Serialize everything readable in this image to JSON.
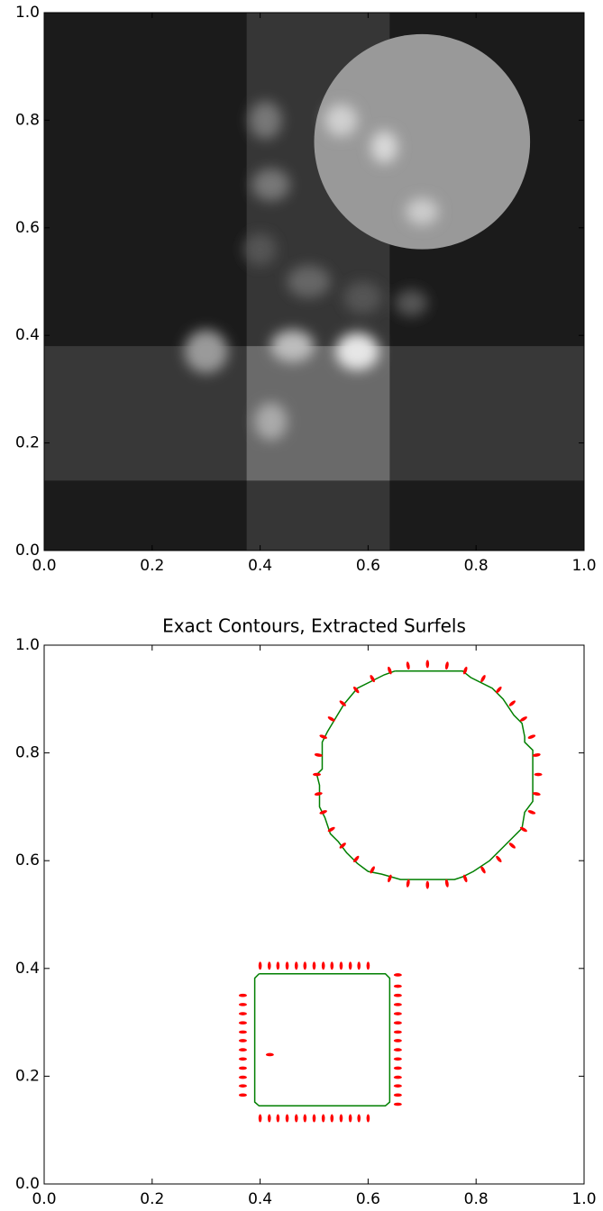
{
  "chart_data": [
    {
      "type": "image",
      "xlim": [
        0,
        1
      ],
      "ylim": [
        0,
        1
      ],
      "xticks": [
        {
          "value": 0,
          "label": "0.0"
        },
        0.2,
        0.4,
        0.6,
        0.8,
        {
          "value": 1,
          "label": "1.0"
        }
      ],
      "yticks": [
        {
          "value": 0,
          "label": "0.0"
        },
        0.2,
        0.4,
        0.6,
        0.8,
        {
          "value": 1,
          "label": "1.0"
        }
      ]
    },
    {
      "type": "scatter",
      "title": "Exact Contours, Extracted Surfels",
      "xlim": [
        0,
        1
      ],
      "ylim": [
        0,
        1
      ],
      "xticks": [
        {
          "value": 0,
          "label": "0.0"
        },
        0.2,
        0.4,
        0.6,
        0.8,
        {
          "value": 1,
          "label": "1.0"
        }
      ],
      "yticks": [
        {
          "value": 0,
          "label": "0.0"
        },
        0.2,
        0.4,
        0.6,
        0.8,
        {
          "value": 1,
          "label": "1.0"
        }
      ],
      "contour_color": "#007f00",
      "surfel_color": "#ff0000",
      "contours": [
        {
          "x": [
            0.398,
            0.632,
            0.64,
            0.64,
            0.632,
            0.398,
            0.39,
            0.39,
            0.398
          ],
          "y": [
            0.39,
            0.39,
            0.382,
            0.152,
            0.145,
            0.145,
            0.152,
            0.382,
            0.39
          ]
        },
        {
          "x": [
            0.65,
            0.775,
            0.79,
            0.83,
            0.85,
            0.87,
            0.885,
            0.89,
            0.89,
            0.905,
            0.905,
            0.89,
            0.885,
            0.865,
            0.845,
            0.825,
            0.795,
            0.775,
            0.76,
            0.66,
            0.625,
            0.6,
            0.58,
            0.56,
            0.545,
            0.53,
            0.52,
            0.51,
            0.51,
            0.505,
            0.515,
            0.515,
            0.525,
            0.54,
            0.555,
            0.58,
            0.61,
            0.63,
            0.65
          ],
          "y": [
            0.952,
            0.952,
            0.94,
            0.92,
            0.9,
            0.87,
            0.855,
            0.83,
            0.82,
            0.805,
            0.71,
            0.69,
            0.66,
            0.64,
            0.62,
            0.6,
            0.58,
            0.57,
            0.565,
            0.565,
            0.575,
            0.58,
            0.595,
            0.615,
            0.635,
            0.65,
            0.68,
            0.7,
            0.74,
            0.76,
            0.77,
            0.82,
            0.84,
            0.865,
            0.89,
            0.92,
            0.935,
            0.945,
            0.952
          ]
        }
      ],
      "surfels": {
        "x": [
          0.915,
          0.912,
          0.903,
          0.888,
          0.867,
          0.842,
          0.813,
          0.78,
          0.746,
          0.71,
          0.674,
          0.64,
          0.608,
          0.578,
          0.553,
          0.532,
          0.517,
          0.508,
          0.505,
          0.508,
          0.517,
          0.532,
          0.553,
          0.578,
          0.608,
          0.64,
          0.674,
          0.71,
          0.746,
          0.78,
          0.813,
          0.842,
          0.867,
          0.888,
          0.903,
          0.912,
          0.4,
          0.417,
          0.433,
          0.45,
          0.467,
          0.483,
          0.5,
          0.517,
          0.533,
          0.55,
          0.567,
          0.583,
          0.6,
          0.4,
          0.417,
          0.433,
          0.45,
          0.467,
          0.483,
          0.5,
          0.517,
          0.533,
          0.55,
          0.567,
          0.583,
          0.6,
          0.368,
          0.368,
          0.368,
          0.368,
          0.368,
          0.368,
          0.368,
          0.368,
          0.368,
          0.368,
          0.368,
          0.368,
          0.655,
          0.655,
          0.655,
          0.655,
          0.655,
          0.655,
          0.655,
          0.655,
          0.655,
          0.655,
          0.655,
          0.655,
          0.655,
          0.655,
          0.655,
          0.418
        ],
        "y": [
          0.76,
          0.796,
          0.83,
          0.863,
          0.892,
          0.917,
          0.938,
          0.953,
          0.962,
          0.965,
          0.962,
          0.953,
          0.938,
          0.917,
          0.892,
          0.863,
          0.83,
          0.796,
          0.76,
          0.724,
          0.69,
          0.658,
          0.628,
          0.603,
          0.583,
          0.567,
          0.558,
          0.555,
          0.558,
          0.567,
          0.583,
          0.603,
          0.628,
          0.658,
          0.69,
          0.724,
          0.405,
          0.405,
          0.405,
          0.405,
          0.405,
          0.405,
          0.405,
          0.405,
          0.405,
          0.405,
          0.405,
          0.405,
          0.405,
          0.122,
          0.122,
          0.122,
          0.122,
          0.122,
          0.122,
          0.122,
          0.122,
          0.122,
          0.122,
          0.122,
          0.122,
          0.122,
          0.165,
          0.182,
          0.198,
          0.215,
          0.232,
          0.249,
          0.266,
          0.282,
          0.299,
          0.316,
          0.333,
          0.35,
          0.148,
          0.165,
          0.182,
          0.198,
          0.215,
          0.232,
          0.249,
          0.266,
          0.282,
          0.299,
          0.316,
          0.333,
          0.35,
          0.367,
          0.388,
          0.24
        ],
        "angle": [
          0,
          10,
          20,
          30,
          40,
          50,
          60,
          70,
          80,
          90,
          100,
          110,
          120,
          130,
          140,
          150,
          160,
          170,
          180,
          190,
          200,
          210,
          220,
          230,
          240,
          250,
          260,
          270,
          280,
          290,
          300,
          310,
          320,
          330,
          340,
          350,
          90,
          90,
          90,
          90,
          90,
          90,
          90,
          90,
          90,
          90,
          90,
          90,
          90,
          90,
          90,
          90,
          90,
          90,
          90,
          90,
          90,
          90,
          90,
          90,
          90,
          90,
          0,
          0,
          0,
          0,
          0,
          0,
          0,
          0,
          0,
          0,
          0,
          0,
          0,
          0,
          0,
          0,
          0,
          0,
          0,
          0,
          0,
          0,
          0,
          0,
          0,
          0,
          0,
          0
        ]
      }
    }
  ]
}
